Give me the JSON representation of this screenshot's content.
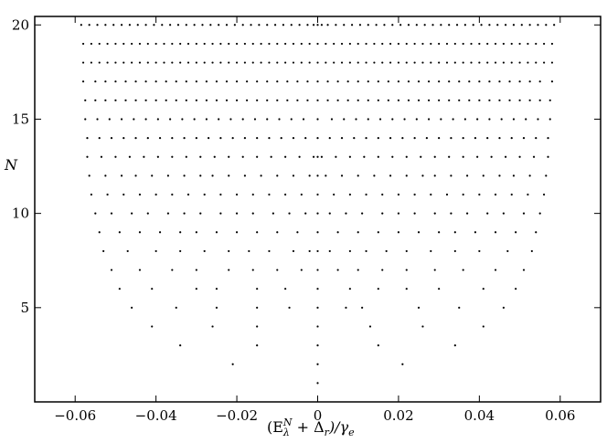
{
  "chart_data": {
    "type": "scatter",
    "xlabel_parts": [
      "(E",
      "λ",
      "N",
      " + Δ",
      "r",
      ")/γ",
      "e"
    ],
    "ylabel": "N",
    "xlim": [
      -0.07,
      0.07
    ],
    "ylim": [
      0,
      20.45
    ],
    "xticks": [
      {
        "value": -0.06,
        "label": "−0.06"
      },
      {
        "value": -0.04,
        "label": "−0.04"
      },
      {
        "value": -0.02,
        "label": "−0.02"
      },
      0,
      0.02,
      0.04,
      0.06
    ],
    "yticks": [
      5,
      10,
      15,
      20
    ],
    "color": "#000000",
    "series": [
      {
        "y": 1,
        "x": [
          0
        ]
      },
      {
        "y": 2,
        "x": [
          -0.021,
          0,
          0.021
        ]
      },
      {
        "y": 3,
        "x": [
          -0.034,
          -0.015,
          0,
          0.015,
          0.034
        ]
      },
      {
        "y": 4,
        "x": [
          -0.041,
          -0.026,
          -0.015,
          0,
          0.013,
          0.026,
          0.041
        ]
      },
      {
        "y": 5,
        "x": [
          -0.046,
          -0.035,
          -0.025,
          -0.015,
          -0.007,
          0,
          0.007,
          0.011,
          0.025,
          0.035,
          0.046
        ]
      },
      {
        "y": 6,
        "x": [
          -0.049,
          -0.041,
          -0.03,
          -0.025,
          -0.015,
          -0.008,
          0,
          0.008,
          0.015,
          0.022,
          0.03,
          0.041,
          0.049
        ]
      },
      {
        "y": 7,
        "x": [
          -0.051,
          -0.044,
          -0.036,
          -0.03,
          -0.022,
          -0.016,
          -0.01,
          -0.004,
          0,
          0.005,
          0.01,
          0.016,
          0.022,
          0.029,
          0.036,
          0.044,
          0.051
        ]
      },
      {
        "y": 8,
        "x": [
          -0.053,
          -0.047,
          -0.04,
          -0.034,
          -0.028,
          -0.022,
          -0.017,
          -0.012,
          -0.006,
          -0.002,
          0,
          0.003,
          0.008,
          0.012,
          0.017,
          0.022,
          0.028,
          0.034,
          0.04,
          0.047,
          0.053
        ]
      },
      {
        "y": 9,
        "x": [
          -0.054,
          -0.049,
          -0.044,
          -0.039,
          -0.034,
          -0.03,
          -0.025,
          -0.02,
          -0.015,
          -0.01,
          -0.005,
          0,
          0.005,
          0.01,
          0.015,
          0.02,
          0.025,
          0.03,
          0.034,
          0.039,
          0.044,
          0.049,
          0.054
        ]
      },
      {
        "y": 10,
        "x": [
          -0.055,
          -0.051,
          -0.046,
          -0.042,
          -0.037,
          -0.033,
          -0.029,
          -0.024,
          -0.02,
          -0.016,
          -0.011,
          -0.007,
          -0.003,
          0,
          0.003,
          0.007,
          0.011,
          0.016,
          0.02,
          0.024,
          0.029,
          0.033,
          0.037,
          0.042,
          0.046,
          0.051,
          0.055
        ]
      },
      {
        "y": 11,
        "x": [
          -0.056,
          -0.052,
          -0.048,
          -0.044,
          -0.04,
          -0.036,
          -0.032,
          -0.028,
          -0.024,
          -0.02,
          -0.016,
          -0.012,
          -0.008,
          -0.004,
          0,
          0.004,
          0.008,
          0.012,
          0.016,
          0.02,
          0.024,
          0.028,
          0.032,
          0.036,
          0.04,
          0.044,
          0.048,
          0.052,
          0.056
        ]
      },
      {
        "y": 12,
        "x": [
          -0.0565,
          -0.0525,
          -0.0485,
          -0.045,
          -0.041,
          -0.037,
          -0.033,
          -0.029,
          -0.026,
          -0.022,
          -0.018,
          -0.014,
          -0.01,
          -0.006,
          -0.002,
          0,
          0.002,
          0.006,
          0.01,
          0.014,
          0.018,
          0.022,
          0.026,
          0.029,
          0.033,
          0.037,
          0.041,
          0.045,
          0.0485,
          0.0525,
          0.0565
        ]
      },
      {
        "y": 13,
        "x": [
          -0.057,
          -0.0535,
          -0.05,
          -0.0465,
          -0.043,
          -0.0395,
          -0.036,
          -0.0325,
          -0.029,
          -0.0255,
          -0.022,
          -0.0185,
          -0.015,
          -0.0115,
          -0.008,
          -0.0045,
          -0.001,
          0,
          0.001,
          0.0045,
          0.008,
          0.0115,
          0.015,
          0.0185,
          0.022,
          0.0255,
          0.029,
          0.0325,
          0.036,
          0.0395,
          0.043,
          0.0465,
          0.05,
          0.0535,
          0.057
        ]
      },
      {
        "y": 14,
        "x": [
          -0.057,
          -0.054,
          -0.051,
          -0.048,
          -0.045,
          -0.042,
          -0.039,
          -0.036,
          -0.033,
          -0.03,
          -0.027,
          -0.024,
          -0.021,
          -0.018,
          -0.015,
          -0.012,
          -0.009,
          -0.006,
          -0.003,
          0,
          0.003,
          0.006,
          0.009,
          0.012,
          0.015,
          0.018,
          0.021,
          0.024,
          0.027,
          0.03,
          0.033,
          0.036,
          0.039,
          0.042,
          0.045,
          0.048,
          0.051,
          0.054,
          0.057
        ]
      },
      {
        "y": 15,
        "x": [
          -0.0575,
          -0.0545,
          -0.0515,
          -0.0485,
          -0.0455,
          -0.0425,
          -0.0395,
          -0.0365,
          -0.0335,
          -0.0305,
          -0.0275,
          -0.0245,
          -0.0215,
          -0.0185,
          -0.0155,
          -0.0125,
          -0.0095,
          -0.0065,
          -0.0035,
          0,
          0.0035,
          0.0065,
          0.0095,
          0.0125,
          0.0155,
          0.0185,
          0.0215,
          0.0245,
          0.0275,
          0.0305,
          0.0335,
          0.0365,
          0.0395,
          0.0425,
          0.0455,
          0.0485,
          0.0515,
          0.0545,
          0.0575
        ]
      },
      {
        "y": 16,
        "x": [
          -0.0575,
          -0.055,
          -0.0525,
          -0.05,
          -0.0475,
          -0.045,
          -0.0425,
          -0.04,
          -0.0375,
          -0.035,
          -0.0325,
          -0.03,
          -0.0275,
          -0.025,
          -0.0225,
          -0.02,
          -0.0175,
          -0.015,
          -0.0125,
          -0.01,
          -0.0075,
          -0.005,
          -0.0025,
          0,
          0.0025,
          0.005,
          0.0075,
          0.01,
          0.0125,
          0.015,
          0.0175,
          0.02,
          0.0225,
          0.025,
          0.0275,
          0.03,
          0.0325,
          0.035,
          0.0375,
          0.04,
          0.0425,
          0.045,
          0.0475,
          0.05,
          0.0525,
          0.055,
          0.0575
        ]
      },
      {
        "y": 17,
        "x": [
          -0.058,
          -0.055,
          -0.0525,
          -0.05,
          -0.0475,
          -0.045,
          -0.0425,
          -0.04,
          -0.0375,
          -0.035,
          -0.0325,
          -0.03,
          -0.0275,
          -0.025,
          -0.0225,
          -0.02,
          -0.0175,
          -0.015,
          -0.0125,
          -0.01,
          -0.0075,
          -0.005,
          -0.0025,
          0,
          0.0025,
          0.005,
          0.0075,
          0.01,
          0.0125,
          0.015,
          0.0175,
          0.02,
          0.0225,
          0.025,
          0.0275,
          0.03,
          0.0325,
          0.035,
          0.0375,
          0.04,
          0.0425,
          0.045,
          0.0475,
          0.05,
          0.0525,
          0.055,
          0.058
        ]
      },
      {
        "y": 18,
        "x": [
          -0.058,
          -0.056,
          -0.054,
          -0.052,
          -0.05,
          -0.048,
          -0.046,
          -0.044,
          -0.042,
          -0.04,
          -0.038,
          -0.036,
          -0.034,
          -0.032,
          -0.03,
          -0.028,
          -0.026,
          -0.024,
          -0.022,
          -0.02,
          -0.018,
          -0.016,
          -0.014,
          -0.012,
          -0.01,
          -0.008,
          -0.006,
          -0.004,
          -0.002,
          0,
          0.002,
          0.004,
          0.006,
          0.008,
          0.01,
          0.012,
          0.014,
          0.016,
          0.018,
          0.02,
          0.022,
          0.024,
          0.026,
          0.028,
          0.03,
          0.032,
          0.034,
          0.036,
          0.038,
          0.04,
          0.042,
          0.044,
          0.046,
          0.048,
          0.05,
          0.052,
          0.054,
          0.056,
          0.058
        ]
      },
      {
        "y": 19,
        "x": [
          -0.058,
          -0.056,
          -0.054,
          -0.052,
          -0.05,
          -0.048,
          -0.046,
          -0.044,
          -0.042,
          -0.04,
          -0.038,
          -0.036,
          -0.034,
          -0.032,
          -0.03,
          -0.028,
          -0.026,
          -0.024,
          -0.022,
          -0.02,
          -0.018,
          -0.016,
          -0.014,
          -0.012,
          -0.01,
          -0.008,
          -0.006,
          -0.004,
          -0.002,
          0,
          0.002,
          0.004,
          0.006,
          0.008,
          0.01,
          0.012,
          0.014,
          0.016,
          0.018,
          0.02,
          0.022,
          0.024,
          0.026,
          0.028,
          0.03,
          0.032,
          0.034,
          0.036,
          0.038,
          0.04,
          0.042,
          0.044,
          0.046,
          0.048,
          0.05,
          0.052,
          0.054,
          0.056,
          0.058
        ]
      },
      {
        "y": 20,
        "x": [
          -0.0585,
          -0.0565,
          -0.0545,
          -0.0525,
          -0.0505,
          -0.0485,
          -0.0465,
          -0.0445,
          -0.0425,
          -0.0405,
          -0.0385,
          -0.0365,
          -0.0345,
          -0.0325,
          -0.0305,
          -0.0285,
          -0.0265,
          -0.0245,
          -0.0225,
          -0.0205,
          -0.0185,
          -0.0165,
          -0.0145,
          -0.0125,
          -0.0105,
          -0.0085,
          -0.0065,
          -0.0045,
          -0.0025,
          -0.001,
          0,
          0.001,
          0.0025,
          0.0045,
          0.0065,
          0.0085,
          0.0105,
          0.0125,
          0.0145,
          0.0165,
          0.0185,
          0.0205,
          0.0225,
          0.0245,
          0.0265,
          0.0285,
          0.0305,
          0.0325,
          0.0345,
          0.0365,
          0.0385,
          0.0405,
          0.0425,
          0.0445,
          0.0465,
          0.0485,
          0.0505,
          0.0525,
          0.0545,
          0.0565,
          0.0585
        ]
      }
    ]
  }
}
